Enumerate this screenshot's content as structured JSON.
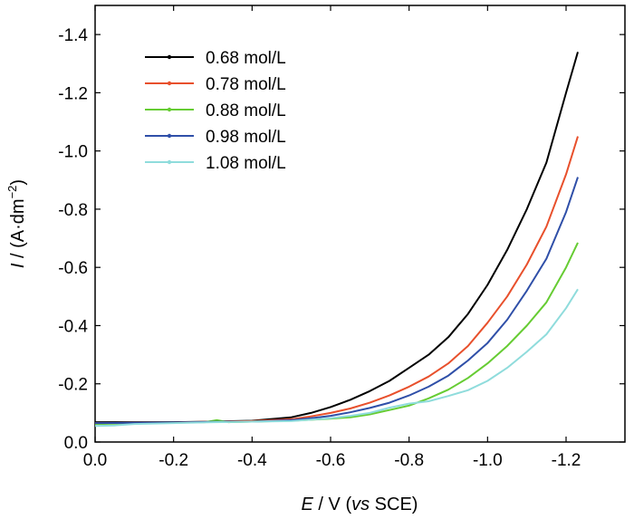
{
  "chart_data": {
    "type": "line",
    "title": "",
    "x_axis": {
      "symbol": "E",
      "label_rest": " / V (",
      "label_ital": "vs",
      "label_end": " SCE)",
      "range": [
        0.0,
        -1.35
      ],
      "ticks": [
        0.0,
        -0.2,
        -0.4,
        -0.6,
        -0.8,
        -1.0,
        -1.2
      ],
      "tick_labels": [
        "0.0",
        "-0.2",
        "-0.4",
        "-0.6",
        "-0.8",
        "-1.0",
        "-1.2"
      ]
    },
    "y_axis": {
      "symbol": "I",
      "label_rest": " / (A·dm",
      "label_sup": "−2",
      "label_end": ")",
      "range": [
        0.0,
        -1.5
      ],
      "ticks": [
        0.0,
        -0.2,
        -0.4,
        -0.6,
        -0.8,
        -1.0,
        -1.2,
        -1.4
      ],
      "tick_labels": [
        "0.0",
        "-0.2",
        "-0.4",
        "-0.6",
        "-0.8",
        "-1.0",
        "-1.2",
        "-1.4"
      ]
    },
    "grid": false,
    "legend_position": "top-left",
    "series": [
      {
        "name": "0.68 mol/L",
        "color": "#000000",
        "points": [
          [
            0.0,
            -0.068
          ],
          [
            -0.1,
            -0.068
          ],
          [
            -0.2,
            -0.068
          ],
          [
            -0.3,
            -0.07
          ],
          [
            -0.4,
            -0.073
          ],
          [
            -0.5,
            -0.085
          ],
          [
            -0.55,
            -0.1
          ],
          [
            -0.6,
            -0.12
          ],
          [
            -0.65,
            -0.145
          ],
          [
            -0.7,
            -0.175
          ],
          [
            -0.75,
            -0.21
          ],
          [
            -0.8,
            -0.255
          ],
          [
            -0.85,
            -0.3
          ],
          [
            -0.9,
            -0.36
          ],
          [
            -0.95,
            -0.44
          ],
          [
            -1.0,
            -0.54
          ],
          [
            -1.05,
            -0.66
          ],
          [
            -1.1,
            -0.8
          ],
          [
            -1.15,
            -0.96
          ],
          [
            -1.2,
            -1.2
          ],
          [
            -1.23,
            -1.34
          ]
        ]
      },
      {
        "name": "0.78 mol/L",
        "color": "#e8502c",
        "points": [
          [
            0.0,
            -0.065
          ],
          [
            -0.1,
            -0.066
          ],
          [
            -0.2,
            -0.067
          ],
          [
            -0.3,
            -0.07
          ],
          [
            -0.4,
            -0.072
          ],
          [
            -0.5,
            -0.078
          ],
          [
            -0.55,
            -0.088
          ],
          [
            -0.6,
            -0.1
          ],
          [
            -0.65,
            -0.115
          ],
          [
            -0.7,
            -0.135
          ],
          [
            -0.75,
            -0.16
          ],
          [
            -0.8,
            -0.19
          ],
          [
            -0.85,
            -0.225
          ],
          [
            -0.9,
            -0.27
          ],
          [
            -0.95,
            -0.33
          ],
          [
            -1.0,
            -0.41
          ],
          [
            -1.05,
            -0.5
          ],
          [
            -1.1,
            -0.61
          ],
          [
            -1.15,
            -0.74
          ],
          [
            -1.2,
            -0.92
          ],
          [
            -1.23,
            -1.05
          ]
        ]
      },
      {
        "name": "0.88 mol/L",
        "color": "#66cc33",
        "points": [
          [
            0.0,
            -0.062
          ],
          [
            -0.1,
            -0.064
          ],
          [
            -0.2,
            -0.066
          ],
          [
            -0.28,
            -0.068
          ],
          [
            -0.31,
            -0.075
          ],
          [
            -0.34,
            -0.068
          ],
          [
            -0.4,
            -0.07
          ],
          [
            -0.5,
            -0.073
          ],
          [
            -0.6,
            -0.08
          ],
          [
            -0.65,
            -0.085
          ],
          [
            -0.7,
            -0.095
          ],
          [
            -0.75,
            -0.11
          ],
          [
            -0.8,
            -0.125
          ],
          [
            -0.85,
            -0.15
          ],
          [
            -0.9,
            -0.18
          ],
          [
            -0.95,
            -0.22
          ],
          [
            -1.0,
            -0.27
          ],
          [
            -1.05,
            -0.33
          ],
          [
            -1.1,
            -0.4
          ],
          [
            -1.15,
            -0.48
          ],
          [
            -1.2,
            -0.6
          ],
          [
            -1.23,
            -0.685
          ]
        ]
      },
      {
        "name": "0.98 mol/L",
        "color": "#2f4fa8",
        "points": [
          [
            0.0,
            -0.065
          ],
          [
            -0.1,
            -0.066
          ],
          [
            -0.2,
            -0.067
          ],
          [
            -0.3,
            -0.069
          ],
          [
            -0.4,
            -0.07
          ],
          [
            -0.5,
            -0.075
          ],
          [
            -0.55,
            -0.082
          ],
          [
            -0.6,
            -0.09
          ],
          [
            -0.65,
            -0.102
          ],
          [
            -0.7,
            -0.117
          ],
          [
            -0.75,
            -0.135
          ],
          [
            -0.8,
            -0.16
          ],
          [
            -0.85,
            -0.19
          ],
          [
            -0.9,
            -0.228
          ],
          [
            -0.95,
            -0.28
          ],
          [
            -1.0,
            -0.34
          ],
          [
            -1.05,
            -0.42
          ],
          [
            -1.1,
            -0.52
          ],
          [
            -1.15,
            -0.63
          ],
          [
            -1.2,
            -0.79
          ],
          [
            -1.23,
            -0.91
          ]
        ]
      },
      {
        "name": "1.08 mol/L",
        "color": "#8fdcdc",
        "points": [
          [
            0.0,
            -0.055
          ],
          [
            -0.05,
            -0.057
          ],
          [
            -0.1,
            -0.062
          ],
          [
            -0.2,
            -0.065
          ],
          [
            -0.3,
            -0.068
          ],
          [
            -0.4,
            -0.07
          ],
          [
            -0.5,
            -0.072
          ],
          [
            -0.6,
            -0.082
          ],
          [
            -0.65,
            -0.09
          ],
          [
            -0.7,
            -0.1
          ],
          [
            -0.75,
            -0.118
          ],
          [
            -0.8,
            -0.132
          ],
          [
            -0.85,
            -0.14
          ],
          [
            -0.9,
            -0.158
          ],
          [
            -0.95,
            -0.178
          ],
          [
            -1.0,
            -0.21
          ],
          [
            -1.05,
            -0.255
          ],
          [
            -1.1,
            -0.31
          ],
          [
            -1.15,
            -0.37
          ],
          [
            -1.2,
            -0.46
          ],
          [
            -1.23,
            -0.525
          ]
        ]
      }
    ]
  }
}
